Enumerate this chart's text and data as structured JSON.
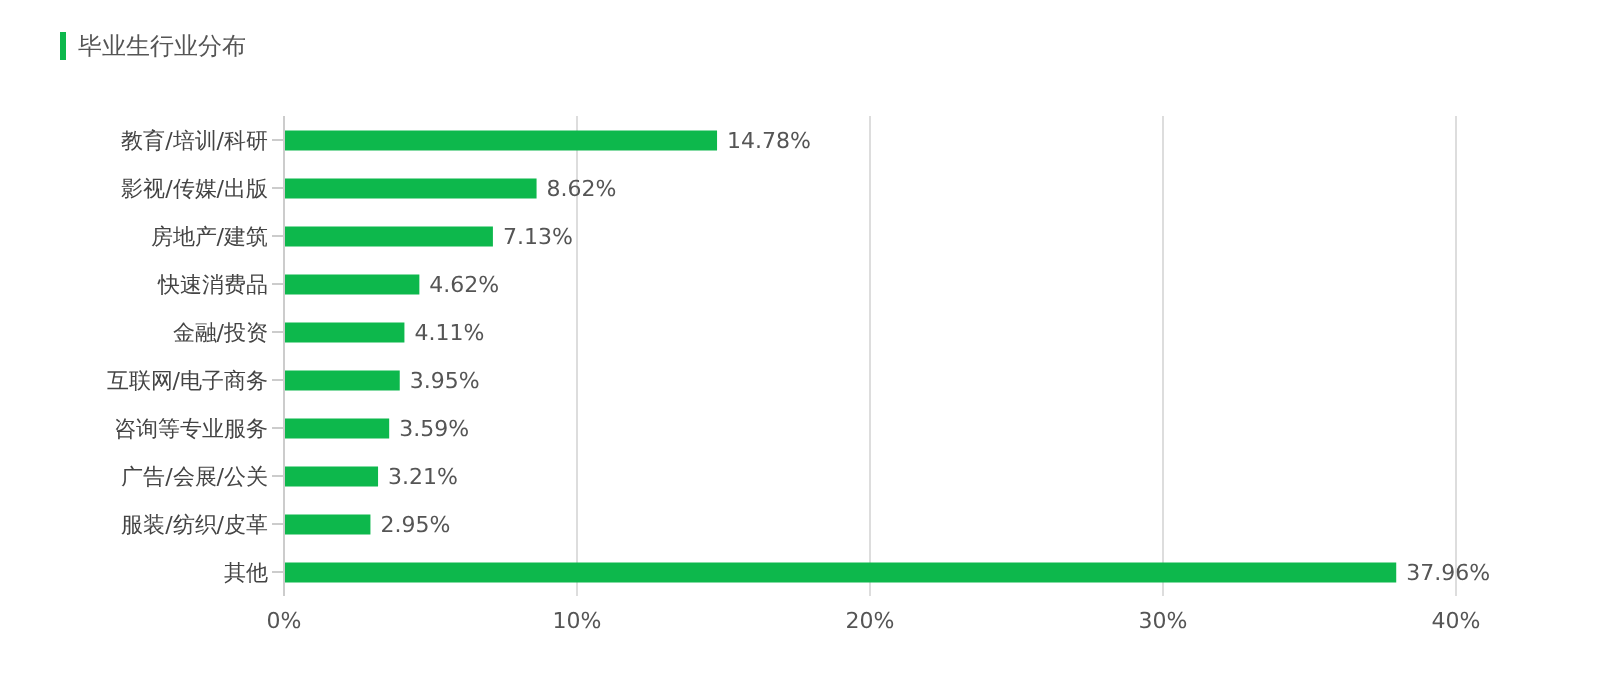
{
  "chart_data": {
    "type": "bar",
    "orientation": "horizontal",
    "title": "毕业生行业分布",
    "categories": [
      "教育/培训/科研",
      "影视/传媒/出版",
      "房地产/建筑",
      "快速消费品",
      "金融/投资",
      "互联网/电子商务",
      "咨询等专业服务",
      "广告/会展/公关",
      "服装/纺织/皮革",
      "其他"
    ],
    "values": [
      14.78,
      8.62,
      7.13,
      4.62,
      4.11,
      3.95,
      3.59,
      3.21,
      2.95,
      37.96
    ],
    "value_labels": [
      "14.78%",
      "8.62%",
      "7.13%",
      "4.62%",
      "4.11%",
      "3.95%",
      "3.59%",
      "3.21%",
      "2.95%",
      "37.96%"
    ],
    "color": "#0db84c",
    "xlim": [
      0,
      40
    ],
    "xticks": [
      {
        "value": 0,
        "label": "0%"
      },
      {
        "value": 10,
        "label": "10%"
      },
      {
        "value": 20,
        "label": "20%"
      },
      {
        "value": 30,
        "label": "30%"
      },
      {
        "value": 40,
        "label": "40%"
      }
    ],
    "grid": "x"
  }
}
